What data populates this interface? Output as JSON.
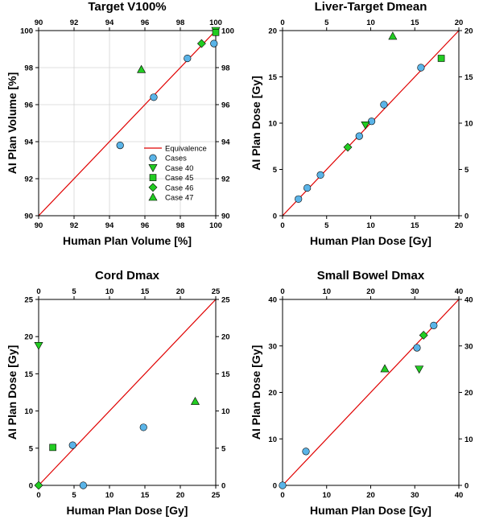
{
  "colors": {
    "equivalence": "#e00000",
    "cases": "#5ab4e8",
    "special": "#22cc22",
    "grid": "#d4d4d4",
    "frame": "#000000"
  },
  "legend": {
    "placement": "center-right, first panel",
    "entries": [
      {
        "label": "Equivalence",
        "marker": "line"
      },
      {
        "label": "Cases",
        "marker": "circle"
      },
      {
        "label": "Case 40",
        "marker": "triangle-down"
      },
      {
        "label": "Case 45",
        "marker": "square"
      },
      {
        "label": "Case 46",
        "marker": "diamond"
      },
      {
        "label": "Case 47",
        "marker": "triangle-up"
      }
    ]
  },
  "chart_data": [
    {
      "type": "scatter",
      "title": "Target V100%",
      "xlabel": "Human Plan Volume [%]",
      "ylabel": "AI Plan Volume [%]",
      "xlim": [
        90,
        100
      ],
      "ylim": [
        90,
        100
      ],
      "ticks": [
        90,
        92,
        94,
        96,
        98,
        100
      ],
      "grid": true,
      "equivalence_line": true,
      "series": [
        {
          "name": "Cases",
          "marker": "circle",
          "points": [
            [
              94.6,
              93.8
            ],
            [
              96.5,
              96.4
            ],
            [
              98.4,
              98.5
            ],
            [
              99.9,
              99.3
            ]
          ]
        },
        {
          "name": "Case 40",
          "marker": "triangle-down",
          "points": [
            [
              100,
              100
            ]
          ]
        },
        {
          "name": "Case 45",
          "marker": "square",
          "points": [
            [
              100,
              99.9
            ]
          ]
        },
        {
          "name": "Case 46",
          "marker": "diamond",
          "points": [
            [
              99.2,
              99.3
            ]
          ]
        },
        {
          "name": "Case 47",
          "marker": "triangle-up",
          "points": [
            [
              95.8,
              97.9
            ]
          ]
        }
      ]
    },
    {
      "type": "scatter",
      "title": "Liver-Target Dmean",
      "xlabel": "Human Plan Dose [Gy]",
      "ylabel": "AI Plan Dose [Gy]",
      "xlim": [
        0,
        20
      ],
      "ylim": [
        0,
        20
      ],
      "ticks": [
        0,
        5,
        10,
        15,
        20
      ],
      "grid": false,
      "equivalence_line": true,
      "series": [
        {
          "name": "Cases",
          "marker": "circle",
          "points": [
            [
              1.8,
              1.8
            ],
            [
              2.8,
              3.0
            ],
            [
              4.3,
              4.4
            ],
            [
              8.7,
              8.6
            ],
            [
              10.1,
              10.2
            ],
            [
              11.5,
              12.0
            ],
            [
              15.7,
              16.0
            ]
          ]
        },
        {
          "name": "Case 40",
          "marker": "triangle-down",
          "points": [
            [
              9.4,
              9.8
            ]
          ]
        },
        {
          "name": "Case 45",
          "marker": "square",
          "points": [
            [
              18.0,
              17.0
            ]
          ]
        },
        {
          "name": "Case 46",
          "marker": "diamond",
          "points": [
            [
              7.4,
              7.4
            ]
          ]
        },
        {
          "name": "Case 47",
          "marker": "triangle-up",
          "points": [
            [
              12.5,
              19.4
            ]
          ]
        }
      ]
    },
    {
      "type": "scatter",
      "title": "Cord Dmax",
      "xlabel": "Human Plan Dose [Gy]",
      "ylabel": "AI Plan Dose [Gy]",
      "xlim": [
        0,
        25
      ],
      "ylim": [
        0,
        25
      ],
      "ticks": [
        0,
        5,
        10,
        15,
        20,
        25
      ],
      "grid": false,
      "equivalence_line": true,
      "series": [
        {
          "name": "Cases",
          "marker": "circle",
          "points": [
            [
              4.8,
              5.4
            ],
            [
              14.8,
              7.8
            ],
            [
              6.3,
              0.0
            ]
          ]
        },
        {
          "name": "Case 40",
          "marker": "triangle-down",
          "points": [
            [
              0.0,
              18.8
            ]
          ]
        },
        {
          "name": "Case 45",
          "marker": "square",
          "points": [
            [
              2.0,
              5.1
            ]
          ]
        },
        {
          "name": "Case 46",
          "marker": "diamond",
          "points": [
            [
              0.0,
              0.0
            ]
          ]
        },
        {
          "name": "Case 47",
          "marker": "triangle-up",
          "points": [
            [
              22.1,
              11.3
            ]
          ]
        }
      ]
    },
    {
      "type": "scatter",
      "title": "Small Bowel Dmax",
      "xlabel": "Human Plan Dose [Gy]",
      "ylabel": "AI Plan Dose [Gy]",
      "xlim": [
        0,
        40
      ],
      "ylim": [
        0,
        40
      ],
      "ticks": [
        0,
        10,
        20,
        30,
        40
      ],
      "grid": false,
      "equivalence_line": true,
      "series": [
        {
          "name": "Cases",
          "marker": "circle",
          "points": [
            [
              0.0,
              0.0
            ],
            [
              5.3,
              7.3
            ],
            [
              30.5,
              29.6
            ],
            [
              34.3,
              34.4
            ]
          ]
        },
        {
          "name": "Case 40",
          "marker": "triangle-down",
          "points": [
            [
              31.0,
              25.0
            ]
          ]
        },
        {
          "name": "Case 45",
          "marker": "square",
          "points": []
        },
        {
          "name": "Case 46",
          "marker": "diamond",
          "points": [
            [
              32.0,
              32.3
            ]
          ]
        },
        {
          "name": "Case 47",
          "marker": "triangle-up",
          "points": [
            [
              23.2,
              25.1
            ]
          ]
        }
      ]
    }
  ]
}
